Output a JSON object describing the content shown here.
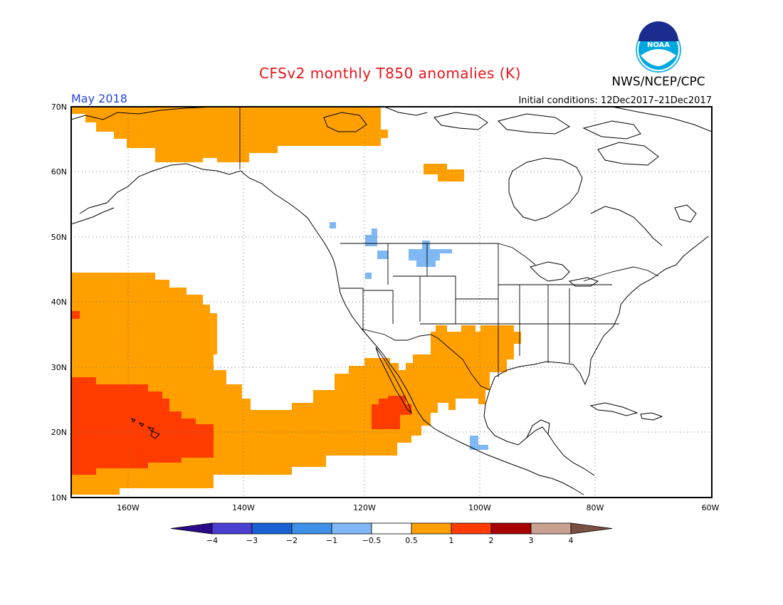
{
  "title": "CFSv2 monthly T850 anomalies (K)",
  "month": "May 2018",
  "initial_conditions": "Initial conditions: 12Dec2017–21Dec2017",
  "agency": "NWS/NCEP/CPC",
  "logo_text": "NOAA",
  "map": {
    "lon_range": [
      -172,
      -60
    ],
    "lat_range": [
      10,
      70
    ],
    "lat_labels": [
      "70N",
      "60N",
      "50N",
      "40N",
      "30N",
      "20N",
      "10N"
    ],
    "lon_labels": [
      "160W",
      "140W",
      "120W",
      "100W",
      "80W",
      "60W"
    ],
    "grid": "dotted"
  },
  "legend": {
    "ticks": [
      "-4",
      "-3",
      "-2",
      "-1",
      "-0.5",
      "0.5",
      "1",
      "2",
      "3",
      "4"
    ],
    "colors": [
      "#2a0a8a",
      "#4a3fd0",
      "#1a62d4",
      "#3d8fe8",
      "#7fb8f5",
      "#ffffff",
      "#ffa000",
      "#ff3c00",
      "#a80000",
      "#c8a090",
      "#7a5040"
    ]
  },
  "colors": {
    "warm1": "#ffa000",
    "warm2": "#ff3c00",
    "cool1": "#7fb8f5",
    "title": "#e8141b",
    "month": "#2244dd"
  }
}
